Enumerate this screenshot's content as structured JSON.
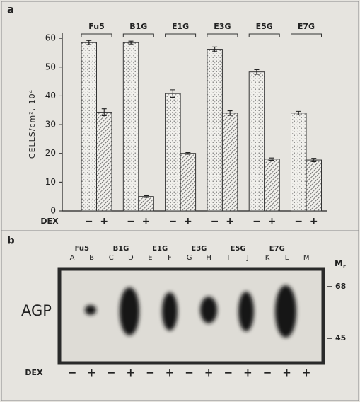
{
  "chart_data": {
    "type": "bar",
    "panel_label": "a",
    "groups": [
      "Fu5",
      "B1G",
      "E1G",
      "E3G",
      "E5G",
      "E7G"
    ],
    "xlabel": "DEX",
    "ylabel": "CELLS/cm², 10⁴",
    "ylim": [
      0,
      62
    ],
    "yticks": [
      0,
      10,
      20,
      30,
      40,
      50,
      60
    ],
    "series": [
      {
        "name": "−",
        "color": "#f1f0ec",
        "pattern": "dots",
        "values": [
          58.5,
          58.5,
          40.8,
          56.2,
          48.3,
          34
        ],
        "errors": [
          0.7,
          0.5,
          1.3,
          0.8,
          0.8,
          0.6
        ]
      },
      {
        "name": "+",
        "color": "#f1f0ec",
        "pattern": "hatch",
        "values": [
          34.3,
          5,
          20,
          34,
          18,
          17.7
        ],
        "errors": [
          1.2,
          0.3,
          0.3,
          0.8,
          0.4,
          0.6
        ]
      }
    ]
  },
  "gel": {
    "panel_label": "b",
    "band_name": "AGP",
    "mr_label": "M",
    "mr_sub": "r",
    "markers": [
      68,
      45
    ],
    "groups": [
      "Fu5",
      "B1G",
      "E1G",
      "E3G",
      "E5G",
      "E7G"
    ],
    "lanes": [
      "A",
      "B",
      "C",
      "D",
      "E",
      "F",
      "G",
      "H",
      "I",
      "J",
      "K",
      "L",
      "M"
    ],
    "dex_label": "DEX",
    "dex": [
      "−",
      "+",
      "−",
      "+",
      "−",
      "+",
      "−",
      "+",
      "−",
      "+",
      "−",
      "+",
      "+"
    ]
  }
}
